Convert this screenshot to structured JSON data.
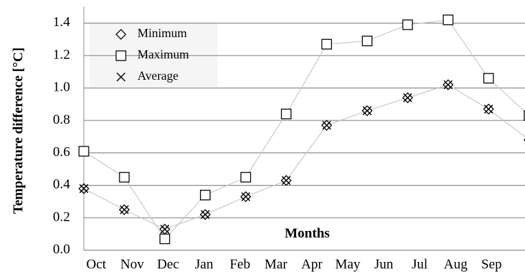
{
  "chart_data": {
    "type": "line",
    "y_label": "Temperature difference  [°C]",
    "annotation": "Months",
    "categories": [
      "Oct",
      "Nov",
      "Dec",
      "Jan",
      "Feb",
      "Mar",
      "Apr",
      "May",
      "Jun",
      "Jul",
      "Aug",
      "Sep"
    ],
    "series": [
      {
        "name": "Minimum",
        "marker": "diamond",
        "color": "#000000",
        "values": [
          0.38,
          0.25,
          0.13,
          0.22,
          0.33,
          0.43,
          0.77,
          0.86,
          0.94,
          1.02,
          0.87,
          0.68
        ]
      },
      {
        "name": "Maximum",
        "marker": "square",
        "color": "#000000",
        "values": [
          0.61,
          0.45,
          0.07,
          0.34,
          0.45,
          0.84,
          1.27,
          1.29,
          1.39,
          1.42,
          1.06,
          0.83
        ]
      },
      {
        "name": "Average",
        "marker": "x",
        "color": "#000000",
        "values": [
          0.38,
          0.25,
          0.13,
          0.22,
          0.33,
          0.43,
          0.77,
          0.86,
          0.94,
          1.02,
          0.87,
          0.68
        ]
      }
    ],
    "ylim": [
      0,
      1.5
    ],
    "yticks": [
      {
        "value": 0,
        "label": "0.0"
      },
      0.2,
      0.4,
      0.6,
      0.8,
      {
        "value": 1,
        "label": "1.0"
      },
      1.2,
      1.4
    ],
    "grid": true
  }
}
